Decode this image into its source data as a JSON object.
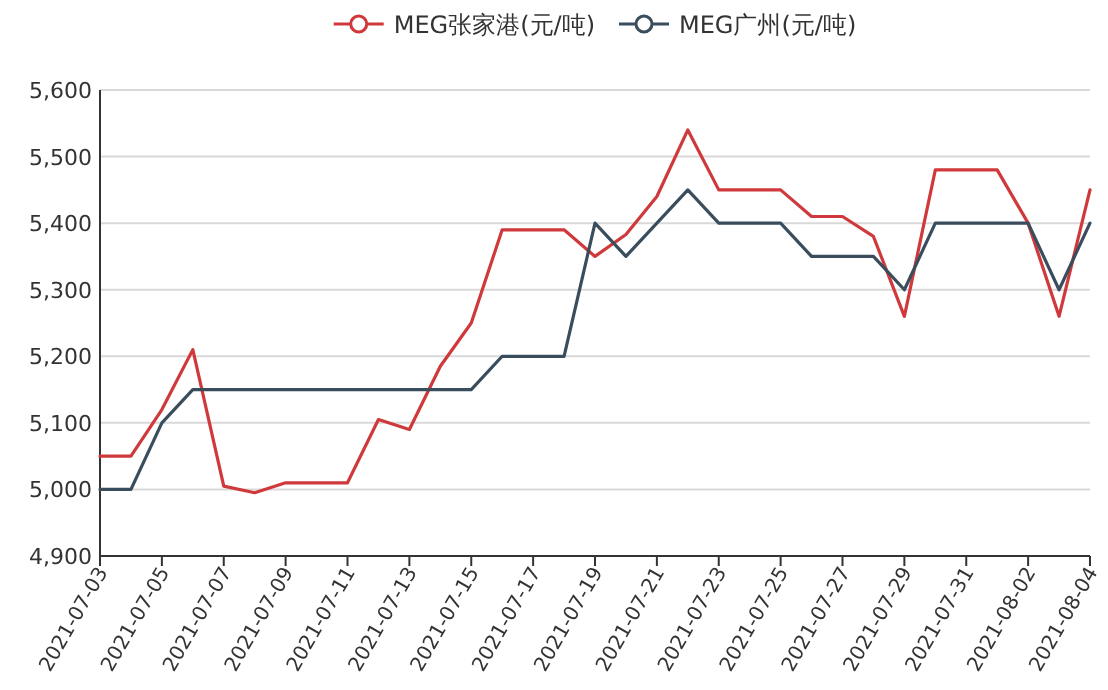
{
  "chart_data": {
    "type": "line",
    "x": [
      "2021-07-03",
      "2021-07-04",
      "2021-07-05",
      "2021-07-06",
      "2021-07-07",
      "2021-07-08",
      "2021-07-09",
      "2021-07-10",
      "2021-07-11",
      "2021-07-12",
      "2021-07-13",
      "2021-07-14",
      "2021-07-15",
      "2021-07-16",
      "2021-07-17",
      "2021-07-18",
      "2021-07-19",
      "2021-07-20",
      "2021-07-21",
      "2021-07-22",
      "2021-07-23",
      "2021-07-24",
      "2021-07-25",
      "2021-07-26",
      "2021-07-27",
      "2021-07-28",
      "2021-07-29",
      "2021-07-30",
      "2021-07-31",
      "2021-08-01",
      "2021-08-02",
      "2021-08-03",
      "2021-08-04"
    ],
    "series": [
      {
        "name": "MEG张家港(元/吨)",
        "color": "#d0393b",
        "values": [
          5050,
          5050,
          5120,
          5210,
          5005,
          4995,
          5010,
          5010,
          5010,
          5105,
          5090,
          5185,
          5250,
          5390,
          5390,
          5390,
          5350,
          5383,
          5440,
          5540,
          5450,
          5450,
          5450,
          5410,
          5410,
          5380,
          5260,
          5480,
          5480,
          5480,
          5400,
          5260,
          5450
        ]
      },
      {
        "name": "MEG广州(元/吨)",
        "color": "#3a4d5c",
        "values": [
          5000,
          5000,
          5100,
          5150,
          5150,
          5150,
          5150,
          5150,
          5150,
          5150,
          5150,
          5150,
          5150,
          5200,
          5200,
          5200,
          5400,
          5350,
          5400,
          5450,
          5400,
          5400,
          5400,
          5350,
          5350,
          5350,
          5300,
          5400,
          5400,
          5400,
          5400,
          5300,
          5400
        ]
      }
    ],
    "xlim": [
      "2021-07-03",
      "2021-08-04"
    ],
    "xticks": [
      "2021-07-03",
      "2021-07-05",
      "2021-07-07",
      "2021-07-09",
      "2021-07-11",
      "2021-07-13",
      "2021-07-15",
      "2021-07-17",
      "2021-07-19",
      "2021-07-21",
      "2021-07-23",
      "2021-07-25",
      "2021-07-27",
      "2021-07-29",
      "2021-07-31",
      "2021-08-02",
      "2021-08-04"
    ],
    "ylim": [
      4900,
      5600
    ],
    "yticks": [
      {
        "value": 4900,
        "label": "4,900"
      },
      {
        "value": 5000,
        "label": "5,000"
      },
      {
        "value": 5100,
        "label": "5,100"
      },
      {
        "value": 5200,
        "label": "5,200"
      },
      {
        "value": 5300,
        "label": "5,300"
      },
      {
        "value": 5400,
        "label": "5,400"
      },
      {
        "value": 5500,
        "label": "5,500"
      },
      {
        "value": 5600,
        "label": "5,600"
      }
    ],
    "grid": "y",
    "legend": "top",
    "marker": "none",
    "line_style": "solid"
  }
}
